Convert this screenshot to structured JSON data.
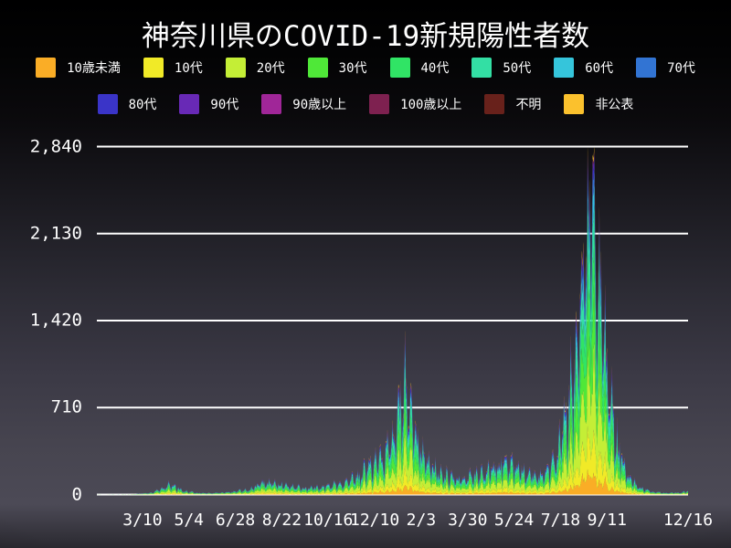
{
  "title": "神奈川県のCOVID-19新規陽性者数",
  "chart_data": {
    "type": "area",
    "stacked": true,
    "title": "神奈川県のCOVID-19新規陽性者数",
    "legend_position": "top",
    "x_axis": {
      "start_date": "2020-01-16",
      "end_date": "2021-12-16",
      "total_days": 700,
      "ticks": [
        {
          "label": "3/10",
          "day": 54
        },
        {
          "label": "5/4",
          "day": 109
        },
        {
          "label": "6/28",
          "day": 164
        },
        {
          "label": "8/22",
          "day": 219
        },
        {
          "label": "10/16",
          "day": 274
        },
        {
          "label": "12/10",
          "day": 329
        },
        {
          "label": "2/3",
          "day": 384
        },
        {
          "label": "3/30",
          "day": 439
        },
        {
          "label": "5/24",
          "day": 494
        },
        {
          "label": "7/18",
          "day": 549
        },
        {
          "label": "9/11",
          "day": 604
        },
        {
          "label": "12/16",
          "day": 700
        }
      ]
    },
    "y_axis": {
      "max": 2840,
      "grid": true,
      "grid_color": "#ffffff",
      "ticks": [
        {
          "label": "0",
          "value": 0
        },
        {
          "label": "710",
          "value": 710
        },
        {
          "label": "1,420",
          "value": 1420
        },
        {
          "label": "2,130",
          "value": 2130
        },
        {
          "label": "2,840",
          "value": 2840
        }
      ]
    },
    "series": [
      {
        "label": "10歳未満",
        "color": "#FAAD26",
        "fraction": 0.062
      },
      {
        "label": "10代",
        "color": "#F1EA27",
        "fraction": 0.105
      },
      {
        "label": "20代",
        "color": "#C4EE36",
        "fraction": 0.225
      },
      {
        "label": "30代",
        "color": "#4FE838",
        "fraction": 0.165
      },
      {
        "label": "40代",
        "color": "#30E465",
        "fraction": 0.15
      },
      {
        "label": "50代",
        "color": "#33DFA4",
        "fraction": 0.118
      },
      {
        "label": "60代",
        "color": "#35C5DB",
        "fraction": 0.065
      },
      {
        "label": "70代",
        "color": "#3274D3",
        "fraction": 0.042
      },
      {
        "label": "80代",
        "color": "#3A34C8",
        "fraction": 0.032
      },
      {
        "label": "90代",
        "color": "#6829B6",
        "fraction": 0.014
      },
      {
        "label": "90歳以上",
        "color": "#A02698",
        "fraction": 0.005
      },
      {
        "label": "100歳以上",
        "color": "#7E2150",
        "fraction": 0.001
      },
      {
        "label": "不明",
        "color": "#68211B",
        "fraction": 0.004
      },
      {
        "label": "非公表",
        "color": "#FBC12D",
        "fraction": 0.012
      }
    ],
    "legend_rows": [
      [
        0,
        1,
        2,
        3,
        4,
        5,
        6,
        7
      ],
      [
        8,
        9,
        10,
        11,
        12,
        13
      ]
    ],
    "total_anchors": [
      [
        0,
        1
      ],
      [
        25,
        1
      ],
      [
        40,
        2
      ],
      [
        54,
        7
      ],
      [
        65,
        16
      ],
      [
        75,
        38
      ],
      [
        86,
        80
      ],
      [
        95,
        55
      ],
      [
        105,
        28
      ],
      [
        120,
        13
      ],
      [
        135,
        12
      ],
      [
        150,
        17
      ],
      [
        165,
        26
      ],
      [
        180,
        45
      ],
      [
        192,
        85
      ],
      [
        200,
        112
      ],
      [
        212,
        98
      ],
      [
        225,
        72
      ],
      [
        240,
        60
      ],
      [
        255,
        56
      ],
      [
        270,
        64
      ],
      [
        285,
        82
      ],
      [
        300,
        118
      ],
      [
        315,
        185
      ],
      [
        330,
        265
      ],
      [
        342,
        370
      ],
      [
        352,
        510
      ],
      [
        358,
        770
      ],
      [
        361,
        940
      ],
      [
        365,
        870
      ],
      [
        372,
        620
      ],
      [
        380,
        430
      ],
      [
        390,
        300
      ],
      [
        400,
        225
      ],
      [
        412,
        160
      ],
      [
        425,
        135
      ],
      [
        440,
        140
      ],
      [
        455,
        175
      ],
      [
        468,
        230
      ],
      [
        478,
        268
      ],
      [
        490,
        248
      ],
      [
        500,
        205
      ],
      [
        512,
        175
      ],
      [
        524,
        168
      ],
      [
        535,
        210
      ],
      [
        545,
        340
      ],
      [
        552,
        530
      ],
      [
        558,
        760
      ],
      [
        564,
        1060
      ],
      [
        570,
        1460
      ],
      [
        576,
        1960
      ],
      [
        581,
        2360
      ],
      [
        585,
        2560
      ],
      [
        589,
        2360
      ],
      [
        594,
        1960
      ],
      [
        600,
        1400
      ],
      [
        606,
        950
      ],
      [
        612,
        610
      ],
      [
        618,
        390
      ],
      [
        625,
        235
      ],
      [
        632,
        135
      ],
      [
        640,
        78
      ],
      [
        648,
        44
      ],
      [
        656,
        27
      ],
      [
        665,
        17
      ],
      [
        675,
        13
      ],
      [
        685,
        15
      ],
      [
        695,
        21
      ],
      [
        700,
        23
      ]
    ],
    "render_hints": {
      "noise_seed": 1337,
      "noise_min": 0.72,
      "noise_span": 0.62,
      "weekday_factors": [
        0.88,
        0.55,
        0.8,
        0.96,
        1.06,
        1.16,
        1.1
      ],
      "clamp_max": 2840,
      "background": "dark-gradient"
    }
  }
}
